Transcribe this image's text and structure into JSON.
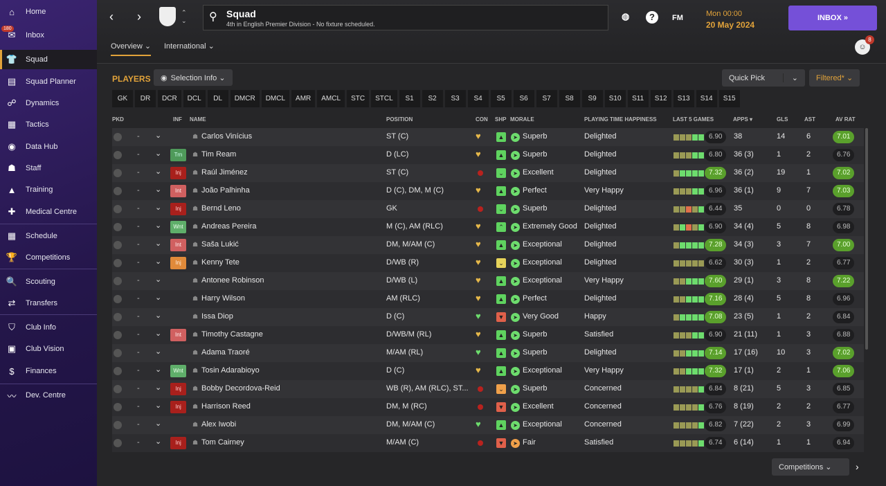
{
  "sidebar": {
    "items": [
      {
        "label": "Home",
        "icon": "⌂"
      },
      {
        "label": "Inbox",
        "icon": "✉",
        "badge": "180"
      },
      {
        "label": "Squad",
        "icon": "👕",
        "active": true
      },
      {
        "label": "Squad Planner",
        "icon": "▤"
      },
      {
        "label": "Dynamics",
        "icon": "☍"
      },
      {
        "label": "Tactics",
        "icon": "▦"
      },
      {
        "label": "Data Hub",
        "icon": "◉"
      },
      {
        "label": "Staff",
        "icon": "☗"
      },
      {
        "label": "Training",
        "icon": "▲"
      },
      {
        "label": "Medical Centre",
        "icon": "✚"
      },
      {
        "label": "Schedule",
        "icon": "▦"
      },
      {
        "label": "Competitions",
        "icon": "🏆"
      },
      {
        "label": "Scouting",
        "icon": "🔍"
      },
      {
        "label": "Transfers",
        "icon": "⇄"
      },
      {
        "label": "Club Info",
        "icon": "⛉"
      },
      {
        "label": "Club Vision",
        "icon": "▣"
      },
      {
        "label": "Finances",
        "icon": "$"
      },
      {
        "label": "Dev. Centre",
        "icon": "〰"
      }
    ]
  },
  "header": {
    "title": "Squad",
    "subtitle": "4th in English Premier Division - No fixture scheduled.",
    "day_time": "Mon 00:00",
    "date": "20 May 2024",
    "inbox": "INBOX »",
    "fm": "FM",
    "help": "?",
    "notifications": "8"
  },
  "tabs": [
    {
      "label": "Overview ⌄"
    },
    {
      "label": "International ⌄"
    }
  ],
  "players_label": "PLAYERS",
  "selection_info": "Selection Info ⌄",
  "quick_pick": "Quick Pick",
  "filtered": "Filtered* ⌄",
  "competitions": "Competitions ⌄",
  "positions": [
    "GK",
    "DR",
    "DCR",
    "DCL",
    "DL",
    "DMCR",
    "DMCL",
    "AMR",
    "AMCL",
    "STC",
    "STCL",
    "S1",
    "S2",
    "S3",
    "S4",
    "S5",
    "S6",
    "S7",
    "S8",
    "S9",
    "S10",
    "S11",
    "S12",
    "S13",
    "S14",
    "S15"
  ],
  "columns": {
    "pkd": "PKD",
    "inf": "INF",
    "name": "NAME",
    "position": "POSITION",
    "con": "CON",
    "shp": "SHP",
    "morale": "MORALE",
    "pth": "PLAYING TIME HAPPINESS",
    "last5": "LAST 5 GAMES",
    "apps": "APPS ▾",
    "gls": "GLS",
    "ast": "AST",
    "avrat": "AV RAT"
  },
  "colors": {
    "accent": "#e2a33a",
    "inbox": "#7550d8",
    "good": "#5aa02c",
    "injury": "#b8221e"
  },
  "players": [
    {
      "name": "Carlos Vinícius",
      "inf": "",
      "position": "ST (C)",
      "con": "heart",
      "shp": "thumb",
      "morale": "Superb",
      "pth": "Delighted",
      "form": "yyygg",
      "last5": "6.90",
      "apps": "38",
      "gls": "14",
      "ast": "6",
      "avrat": "7.01"
    },
    {
      "name": "Tim Ream",
      "inf": "Trn",
      "position": "D (LC)",
      "con": "heart",
      "shp": "thumb",
      "morale": "Superb",
      "pth": "Delighted",
      "form": "yyygg",
      "last5": "6.80",
      "apps": "36 (3)",
      "gls": "1",
      "ast": "2",
      "avrat": "6.76"
    },
    {
      "name": "Raúl Jiménez",
      "inf": "Inj",
      "position": "ST (C)",
      "con": "injury",
      "shp": "down",
      "morale": "Excellent",
      "pth": "Delighted",
      "form": "ygggg",
      "last5": "7.32",
      "apps": "36 (2)",
      "gls": "19",
      "ast": "1",
      "avrat": "7.02"
    },
    {
      "name": "João Palhinha",
      "inf": "Int",
      "position": "D (C), DM, M (C)",
      "con": "heart",
      "shp": "thumb",
      "morale": "Perfect",
      "pth": "Very Happy",
      "form": "yyygg",
      "last5": "6.96",
      "apps": "36 (1)",
      "gls": "9",
      "ast": "7",
      "avrat": "7.03"
    },
    {
      "name": "Bernd Leno",
      "inf": "Inj",
      "position": "GK",
      "con": "injury",
      "shp": "down",
      "morale": "Superb",
      "pth": "Delighted",
      "form": "yyryg",
      "last5": "6.44",
      "apps": "35",
      "gls": "0",
      "ast": "0",
      "avrat": "6.78"
    },
    {
      "name": "Andreas Pereira",
      "inf": "Wnt",
      "position": "M (C), AM (RLC)",
      "con": "heart",
      "shp": "up",
      "morale": "Extremely Good",
      "pth": "Delighted",
      "form": "ygryg",
      "last5": "6.90",
      "apps": "34 (4)",
      "gls": "5",
      "ast": "8",
      "avrat": "6.98"
    },
    {
      "name": "Saša Lukić",
      "inf": "Int",
      "position": "DM, M/AM (C)",
      "con": "heart",
      "shp": "thumb",
      "morale": "Exceptional",
      "pth": "Delighted",
      "form": "ygggg",
      "last5": "7.28",
      "apps": "34 (3)",
      "gls": "3",
      "ast": "7",
      "avrat": "7.00"
    },
    {
      "name": "Kenny Tete",
      "inf": "Inj",
      "position": "D/WB (R)",
      "con": "heart",
      "shp": "downy",
      "morale": "Exceptional",
      "pth": "Delighted",
      "form": "yyyyy",
      "last5": "6.62",
      "apps": "30 (3)",
      "gls": "1",
      "ast": "2",
      "avrat": "6.77"
    },
    {
      "name": "Antonee Robinson",
      "inf": "",
      "position": "D/WB (L)",
      "con": "heart",
      "shp": "thumb",
      "morale": "Exceptional",
      "pth": "Very Happy",
      "form": "yyggg",
      "last5": "7.60",
      "apps": "29 (1)",
      "gls": "3",
      "ast": "8",
      "avrat": "7.22"
    },
    {
      "name": "Harry Wilson",
      "inf": "",
      "position": "AM (RLC)",
      "con": "heart",
      "shp": "thumb",
      "morale": "Perfect",
      "pth": "Delighted",
      "form": "yyggg",
      "last5": "7.16",
      "apps": "28 (4)",
      "gls": "5",
      "ast": "8",
      "avrat": "6.96"
    },
    {
      "name": "Issa Diop",
      "inf": "",
      "position": "D (C)",
      "con": "gheart",
      "shp": "bad",
      "morale": "Very Good",
      "pth": "Happy",
      "form": "ygggg",
      "last5": "7.08",
      "apps": "23 (5)",
      "gls": "1",
      "ast": "2",
      "avrat": "6.84"
    },
    {
      "name": "Timothy Castagne",
      "inf": "Int",
      "position": "D/WB/M (RL)",
      "con": "heart",
      "shp": "thumb",
      "morale": "Superb",
      "pth": "Satisfied",
      "form": "yyygg",
      "last5": "6.90",
      "apps": "21 (11)",
      "gls": "1",
      "ast": "3",
      "avrat": "6.88"
    },
    {
      "name": "Adama Traoré",
      "inf": "",
      "position": "M/AM (RL)",
      "con": "gheart",
      "shp": "thumb",
      "morale": "Superb",
      "pth": "Delighted",
      "form": "yyggg",
      "last5": "7.14",
      "apps": "17 (16)",
      "gls": "10",
      "ast": "3",
      "avrat": "7.02"
    },
    {
      "name": "Tosin Adarabioyo",
      "inf": "Wnt",
      "position": "D (C)",
      "con": "heart",
      "shp": "thumb",
      "morale": "Exceptional",
      "pth": "Very Happy",
      "form": "yyggg",
      "last5": "7.32",
      "apps": "17 (1)",
      "gls": "2",
      "ast": "1",
      "avrat": "7.06"
    },
    {
      "name": "Bobby Decordova-Reid",
      "inf": "Inj",
      "position": "WB (R), AM (RLC), ST...",
      "con": "injury",
      "shp": "downo",
      "morale": "Superb",
      "pth": "Concerned",
      "form": "yyyyg",
      "last5": "6.84",
      "apps": "8 (21)",
      "gls": "5",
      "ast": "3",
      "avrat": "6.85"
    },
    {
      "name": "Harrison Reed",
      "inf": "Inj",
      "position": "DM, M (RC)",
      "con": "injury",
      "shp": "bad",
      "morale": "Excellent",
      "pth": "Concerned",
      "form": "yyyyg",
      "last5": "6.76",
      "apps": "8 (19)",
      "gls": "2",
      "ast": "2",
      "avrat": "6.77"
    },
    {
      "name": "Alex Iwobi",
      "inf": "",
      "position": "DM, M/AM (C)",
      "con": "gheart",
      "shp": "thumb",
      "morale": "Exceptional",
      "pth": "Concerned",
      "form": "yyyyg",
      "last5": "6.82",
      "apps": "7 (22)",
      "gls": "2",
      "ast": "3",
      "avrat": "6.99"
    },
    {
      "name": "Tom Cairney",
      "inf": "Inj",
      "position": "M/AM (C)",
      "con": "injury",
      "shp": "bad",
      "morale": "Fair",
      "pth": "Satisfied",
      "form": "yyyyg",
      "last5": "6.74",
      "apps": "6 (14)",
      "gls": "1",
      "ast": "1",
      "avrat": "6.94"
    }
  ]
}
